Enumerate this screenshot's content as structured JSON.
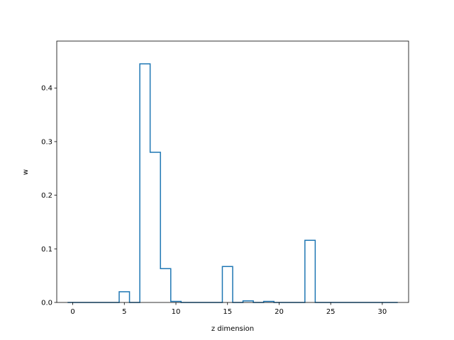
{
  "chart_data": {
    "type": "bar",
    "style": "step-outline",
    "title": "",
    "xlabel": "z dimension",
    "ylabel": "w",
    "xlim": [
      -1.55,
      32.55
    ],
    "ylim": [
      0,
      0.4875
    ],
    "xticks": [
      0,
      5,
      10,
      15,
      20,
      25,
      30
    ],
    "yticks": [
      0.0,
      0.1,
      0.2,
      0.3,
      0.4
    ],
    "ytick_labels": [
      "0.0",
      "0.1",
      "0.2",
      "0.3",
      "0.4"
    ],
    "grid": false,
    "legend": "none",
    "line_color": "#1f77b4",
    "x": [
      0,
      1,
      2,
      3,
      4,
      5,
      6,
      7,
      8,
      9,
      10,
      11,
      12,
      13,
      14,
      15,
      16,
      17,
      18,
      19,
      20,
      21,
      22,
      23,
      24,
      25,
      26,
      27,
      28,
      29,
      30,
      31
    ],
    "values": [
      0,
      0,
      0,
      0,
      0,
      0.02,
      0,
      0.445,
      0.28,
      0.063,
      0.002,
      0,
      0,
      0,
      0,
      0.067,
      0,
      0.003,
      0,
      0.002,
      0,
      0,
      0,
      0.116,
      0,
      0,
      0,
      0,
      0,
      0,
      0,
      0
    ]
  }
}
